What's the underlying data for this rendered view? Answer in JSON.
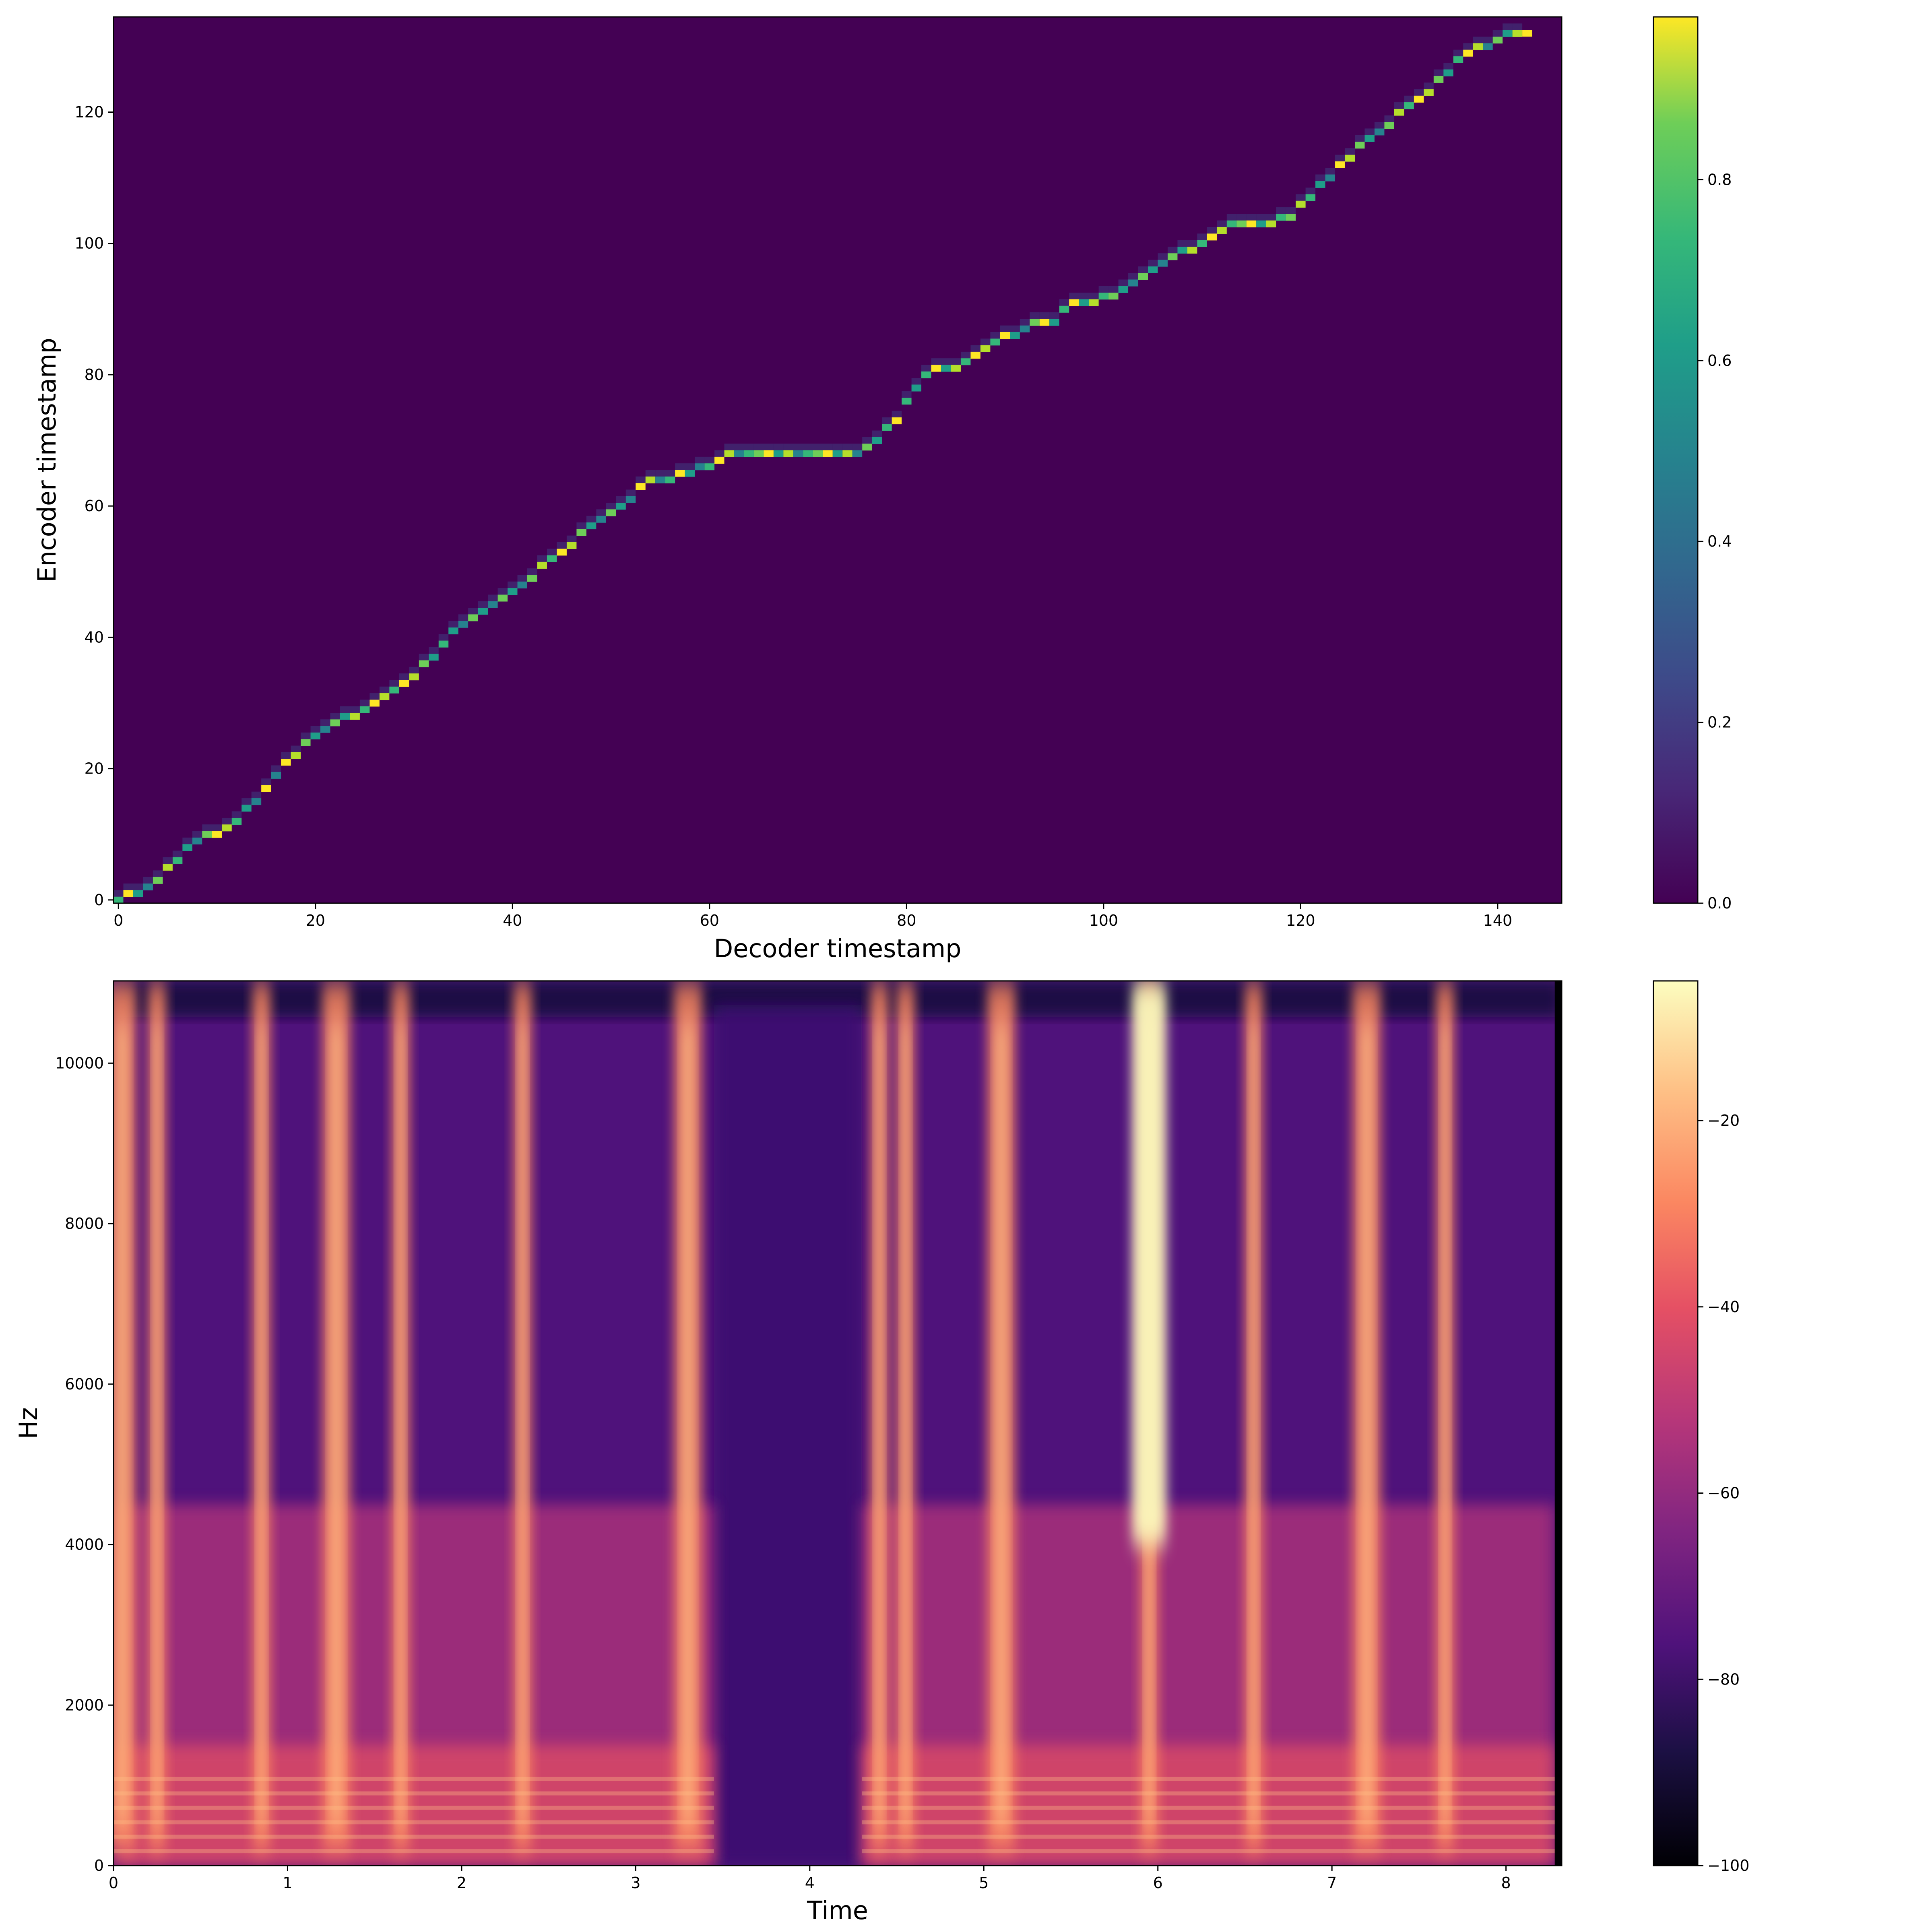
{
  "chart_data": [
    {
      "type": "heatmap",
      "subtype": "attention-alignment",
      "xlabel": "Decoder timestamp",
      "ylabel": "Encoder timestamp",
      "xlim": [
        -0.5,
        146.5
      ],
      "ylim": [
        -0.5,
        134.5
      ],
      "xticks": [
        0,
        20,
        40,
        60,
        80,
        100,
        120,
        140
      ],
      "yticks": [
        0,
        20,
        40,
        60,
        80,
        100,
        120
      ],
      "colormap": "viridis",
      "colorbar": {
        "range": [
          0.0,
          0.98
        ],
        "ticks": [
          "0.0",
          "0.2",
          "0.4",
          "0.6",
          "0.8"
        ]
      },
      "alignment_path": [
        [
          0,
          0
        ],
        [
          2,
          1
        ],
        [
          4,
          3
        ],
        [
          6,
          6
        ],
        [
          8,
          9
        ],
        [
          10,
          10
        ],
        [
          12,
          12
        ],
        [
          14,
          15
        ],
        [
          16,
          19
        ],
        [
          18,
          22
        ],
        [
          20,
          25
        ],
        [
          22,
          27
        ],
        [
          24,
          28
        ],
        [
          26,
          30
        ],
        [
          28,
          32
        ],
        [
          30,
          34
        ],
        [
          32,
          37
        ],
        [
          34,
          41
        ],
        [
          36,
          43
        ],
        [
          38,
          45
        ],
        [
          40,
          47
        ],
        [
          42,
          49
        ],
        [
          44,
          52
        ],
        [
          46,
          54
        ],
        [
          48,
          57
        ],
        [
          50,
          59
        ],
        [
          52,
          61
        ],
        [
          54,
          64
        ],
        [
          56,
          64
        ],
        [
          58,
          65
        ],
        [
          60,
          66
        ],
        [
          62,
          68
        ],
        [
          70,
          68
        ],
        [
          75,
          68
        ],
        [
          77,
          70
        ],
        [
          79,
          73
        ],
        [
          81,
          78
        ],
        [
          83,
          81
        ],
        [
          85,
          81
        ],
        [
          87,
          83
        ],
        [
          89,
          85
        ],
        [
          91,
          86
        ],
        [
          93,
          88
        ],
        [
          95,
          88
        ],
        [
          97,
          91
        ],
        [
          99,
          91
        ],
        [
          101,
          92
        ],
        [
          103,
          94
        ],
        [
          105,
          96
        ],
        [
          107,
          98
        ],
        [
          109,
          99
        ],
        [
          111,
          101
        ],
        [
          113,
          103
        ],
        [
          115,
          103
        ],
        [
          117,
          103
        ],
        [
          119,
          104
        ],
        [
          121,
          107
        ],
        [
          123,
          110
        ],
        [
          125,
          113
        ],
        [
          127,
          116
        ],
        [
          129,
          118
        ],
        [
          131,
          121
        ],
        [
          133,
          123
        ],
        [
          135,
          126
        ],
        [
          137,
          129
        ],
        [
          139,
          130
        ],
        [
          141,
          132
        ],
        [
          143,
          132
        ]
      ]
    },
    {
      "type": "heatmap",
      "subtype": "spectrogram",
      "xlabel": "Time",
      "ylabel": "Hz",
      "xlim": [
        0,
        8.32
      ],
      "ylim": [
        0,
        11025
      ],
      "xticks": [
        0,
        1,
        2,
        3,
        4,
        5,
        6,
        7,
        8
      ],
      "yticks": [
        0,
        2000,
        4000,
        6000,
        8000,
        10000
      ],
      "colormap": "magma",
      "colorbar": {
        "range": [
          -100,
          -5
        ],
        "ticks": [
          "−100",
          "−80",
          "−60",
          "−40",
          "−20"
        ]
      },
      "silent_region": [
        3.45,
        4.3
      ],
      "bright_bursts": [
        0.05,
        0.25,
        0.85,
        1.28,
        1.65,
        2.35,
        3.3,
        4.4,
        4.55,
        5.1,
        5.95,
        6.55,
        7.2,
        7.65
      ]
    }
  ]
}
